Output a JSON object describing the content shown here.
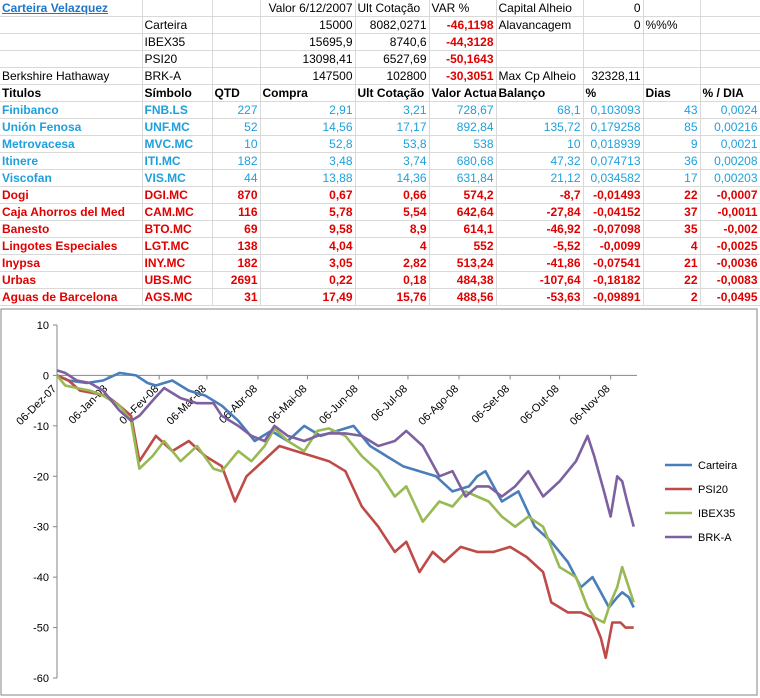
{
  "summary": {
    "title": "Carteira Velazquez",
    "header_valor": "Valor 6/12/2007",
    "header_cot": "Ult Cotação",
    "header_var": "VAR %",
    "capital_label": "Capital Alheio",
    "capital_value": "0",
    "alav_label": "Alavancagem",
    "alav_value": "0",
    "alav_unit": "%%%",
    "maxcp_label": "Max Cp Alheio",
    "maxcp_value": "32328,11",
    "rows": [
      {
        "name": "",
        "sym": "Carteira",
        "valor": "15000",
        "cot": "8082,0271",
        "var": "-46,1198"
      },
      {
        "name": "",
        "sym": "IBEX35",
        "valor": "15695,9",
        "cot": "8740,6",
        "var": "-44,3128"
      },
      {
        "name": "",
        "sym": "PSI20",
        "valor": "13098,41",
        "cot": "6527,69",
        "var": "-50,1643"
      },
      {
        "name": "Berkshire Hathaway",
        "sym": "BRK-A",
        "valor": "147500",
        "cot": "102800",
        "var": "-30,3051"
      }
    ]
  },
  "holdings": {
    "headers": [
      "Titulos",
      "Símbolo",
      "QTD",
      "Compra",
      "Ult Cotação",
      "Valor Actual",
      "Balanço",
      "%",
      "Dias",
      "% / DIA"
    ],
    "rows": [
      {
        "t": "Finibanco",
        "s": "FNB.LS",
        "q": "227",
        "c": "2,91",
        "u": "3,21",
        "v": "728,67",
        "b": "68,1",
        "p": "0,103093",
        "d": "43",
        "pd": "0,0024",
        "pos": true
      },
      {
        "t": "Unión Fenosa",
        "s": "UNF.MC",
        "q": "52",
        "c": "14,56",
        "u": "17,17",
        "v": "892,84",
        "b": "135,72",
        "p": "0,179258",
        "d": "85",
        "pd": "0,00216",
        "pos": true
      },
      {
        "t": "Metrovacesa",
        "s": "MVC.MC",
        "q": "10",
        "c": "52,8",
        "u": "53,8",
        "v": "538",
        "b": "10",
        "p": "0,018939",
        "d": "9",
        "pd": "0,0021",
        "pos": true
      },
      {
        "t": "Itinere",
        "s": "ITI.MC",
        "q": "182",
        "c": "3,48",
        "u": "3,74",
        "v": "680,68",
        "b": "47,32",
        "p": "0,074713",
        "d": "36",
        "pd": "0,00208",
        "pos": true
      },
      {
        "t": "Viscofan",
        "s": "VIS.MC",
        "q": "44",
        "c": "13,88",
        "u": "14,36",
        "v": "631,84",
        "b": "21,12",
        "p": "0,034582",
        "d": "17",
        "pd": "0,00203",
        "pos": true
      },
      {
        "t": "Dogi",
        "s": "DGI.MC",
        "q": "870",
        "c": "0,67",
        "u": "0,66",
        "v": "574,2",
        "b": "-8,7",
        "p": "-0,01493",
        "d": "22",
        "pd": "-0,0007",
        "pos": false
      },
      {
        "t": "Caja Ahorros del Med",
        "s": "CAM.MC",
        "q": "116",
        "c": "5,78",
        "u": "5,54",
        "v": "642,64",
        "b": "-27,84",
        "p": "-0,04152",
        "d": "37",
        "pd": "-0,0011",
        "pos": false
      },
      {
        "t": "Banesto",
        "s": "BTO.MC",
        "q": "69",
        "c": "9,58",
        "u": "8,9",
        "v": "614,1",
        "b": "-46,92",
        "p": "-0,07098",
        "d": "35",
        "pd": "-0,002",
        "pos": false
      },
      {
        "t": "Lingotes Especiales",
        "s": "LGT.MC",
        "q": "138",
        "c": "4,04",
        "u": "4",
        "v": "552",
        "b": "-5,52",
        "p": "-0,0099",
        "d": "4",
        "pd": "-0,0025",
        "pos": false
      },
      {
        "t": "Inypsa",
        "s": "INY.MC",
        "q": "182",
        "c": "3,05",
        "u": "2,82",
        "v": "513,24",
        "b": "-41,86",
        "p": "-0,07541",
        "d": "21",
        "pd": "-0,0036",
        "pos": false
      },
      {
        "t": "Urbas",
        "s": "UBS.MC",
        "q": "2691",
        "c": "0,22",
        "u": "0,18",
        "v": "484,38",
        "b": "-107,64",
        "p": "-0,18182",
        "d": "22",
        "pd": "-0,0083",
        "pos": false
      },
      {
        "t": "Aguas de Barcelona",
        "s": "AGS.MC",
        "q": "31",
        "c": "17,49",
        "u": "15,76",
        "v": "488,56",
        "b": "-53,63",
        "p": "-0,09891",
        "d": "2",
        "pd": "-0,0495",
        "pos": false
      }
    ]
  },
  "chart_data": {
    "type": "line",
    "ylim": [
      -60,
      10
    ],
    "yticks": [
      10,
      0,
      -10,
      -20,
      -30,
      -40,
      -50,
      -60
    ],
    "grid": false,
    "legend_position": "right",
    "xlim_days": [
      0,
      352
    ],
    "xticks": [
      {
        "label": "06-Dez-07",
        "day": 0
      },
      {
        "label": "06-Jan-08",
        "day": 31
      },
      {
        "label": "06-Fev-08",
        "day": 62
      },
      {
        "label": "06-Mar-08",
        "day": 91
      },
      {
        "label": "06-Abr-08",
        "day": 122
      },
      {
        "label": "06-Mai-08",
        "day": 152
      },
      {
        "label": "06-Jun-08",
        "day": 183
      },
      {
        "label": "06-Jul-08",
        "day": 213
      },
      {
        "label": "06-Ago-08",
        "day": 244
      },
      {
        "label": "06-Set-08",
        "day": 275
      },
      {
        "label": "06-Out-08",
        "day": 305
      },
      {
        "label": "06-Nov-08",
        "day": 336
      }
    ],
    "series": [
      {
        "name": "Carteira",
        "color": "#4a7ebb",
        "x": [
          0,
          7,
          18,
          28,
          38,
          48,
          55,
          60,
          70,
          80,
          90,
          100,
          110,
          120,
          130,
          140,
          150,
          160,
          170,
          180,
          190,
          200,
          210,
          220,
          230,
          240,
          250,
          255,
          260,
          270,
          280,
          290,
          300,
          310,
          318,
          325,
          330,
          335,
          340,
          343,
          347,
          350
        ],
        "y": [
          0,
          -1,
          -1.5,
          -1,
          0.5,
          0,
          -1.5,
          -2,
          -1,
          -3,
          -4,
          -6,
          -9,
          -13,
          -11,
          -13,
          -10,
          -12,
          -11,
          -10,
          -14,
          -16,
          -18,
          -19,
          -20,
          -23,
          -22,
          -20,
          -19,
          -25,
          -23,
          -30,
          -33,
          -37,
          -42,
          -40,
          -43,
          -46,
          -44,
          -43,
          -44,
          -46
        ]
      },
      {
        "name": "PSI20",
        "color": "#be4b48",
        "x": [
          0,
          7,
          14,
          22,
          30,
          38,
          45,
          50,
          60,
          70,
          80,
          90,
          100,
          108,
          115,
          125,
          135,
          145,
          155,
          165,
          175,
          185,
          195,
          205,
          212,
          220,
          228,
          235,
          245,
          255,
          265,
          275,
          285,
          295,
          300,
          310,
          318,
          325,
          330,
          333,
          337,
          342,
          345,
          350
        ],
        "y": [
          0,
          -1,
          -3,
          -3.5,
          -4,
          -6,
          -8,
          -17,
          -12,
          -15,
          -13,
          -16,
          -18,
          -25,
          -20,
          -17,
          -14,
          -15,
          -16,
          -17,
          -19,
          -26,
          -30,
          -35,
          -33,
          -39,
          -35,
          -37,
          -34,
          -35,
          -35,
          -34,
          -36,
          -39,
          -45,
          -47,
          -47,
          -48,
          -52,
          -56,
          -49,
          -49,
          -50,
          -50
        ]
      },
      {
        "name": "IBEX35",
        "color": "#98b954",
        "x": [
          0,
          5,
          12,
          20,
          28,
          38,
          45,
          50,
          58,
          65,
          75,
          85,
          95,
          100,
          110,
          118,
          126,
          132,
          140,
          150,
          158,
          165,
          175,
          185,
          195,
          205,
          212,
          222,
          232,
          240,
          248,
          255,
          262,
          270,
          278,
          286,
          295,
          305,
          315,
          322,
          326,
          332,
          336,
          340,
          343,
          346,
          350
        ],
        "y": [
          0,
          -2,
          -2.5,
          -3,
          -4,
          -6,
          -9,
          -18.5,
          -16,
          -13,
          -17,
          -14,
          -18.5,
          -19,
          -15,
          -17,
          -14,
          -10.5,
          -13,
          -15,
          -11,
          -10.5,
          -12,
          -16,
          -19,
          -24,
          -22,
          -29,
          -25,
          -26,
          -23,
          -24,
          -25,
          -28,
          -30,
          -28,
          -30,
          -38,
          -40,
          -46,
          -48,
          -49,
          -45,
          -42,
          -38,
          -41,
          -45
        ]
      },
      {
        "name": "BRK-A",
        "color": "#7d60a0",
        "x": [
          0,
          5,
          12,
          20,
          28,
          38,
          45,
          50,
          58,
          65,
          75,
          85,
          95,
          100,
          110,
          118,
          126,
          132,
          140,
          150,
          158,
          165,
          175,
          185,
          195,
          205,
          212,
          222,
          232,
          240,
          248,
          255,
          262,
          270,
          278,
          286,
          295,
          305,
          315,
          322,
          326,
          332,
          336,
          340,
          343,
          346,
          350
        ],
        "y": [
          1,
          0.5,
          -1,
          -1.5,
          -3,
          -7,
          -9,
          -8,
          -5,
          -2.5,
          -4.5,
          -5.5,
          -5.5,
          -8,
          -10,
          -12,
          -13,
          -10,
          -12,
          -13,
          -12,
          -11.5,
          -11.5,
          -12,
          -14,
          -13,
          -11,
          -14,
          -20,
          -19,
          -24,
          -22,
          -22,
          -24,
          -22,
          -19,
          -24,
          -21,
          -17,
          -12,
          -16,
          -23,
          -28,
          -20,
          -21,
          -25,
          -30
        ]
      }
    ]
  }
}
